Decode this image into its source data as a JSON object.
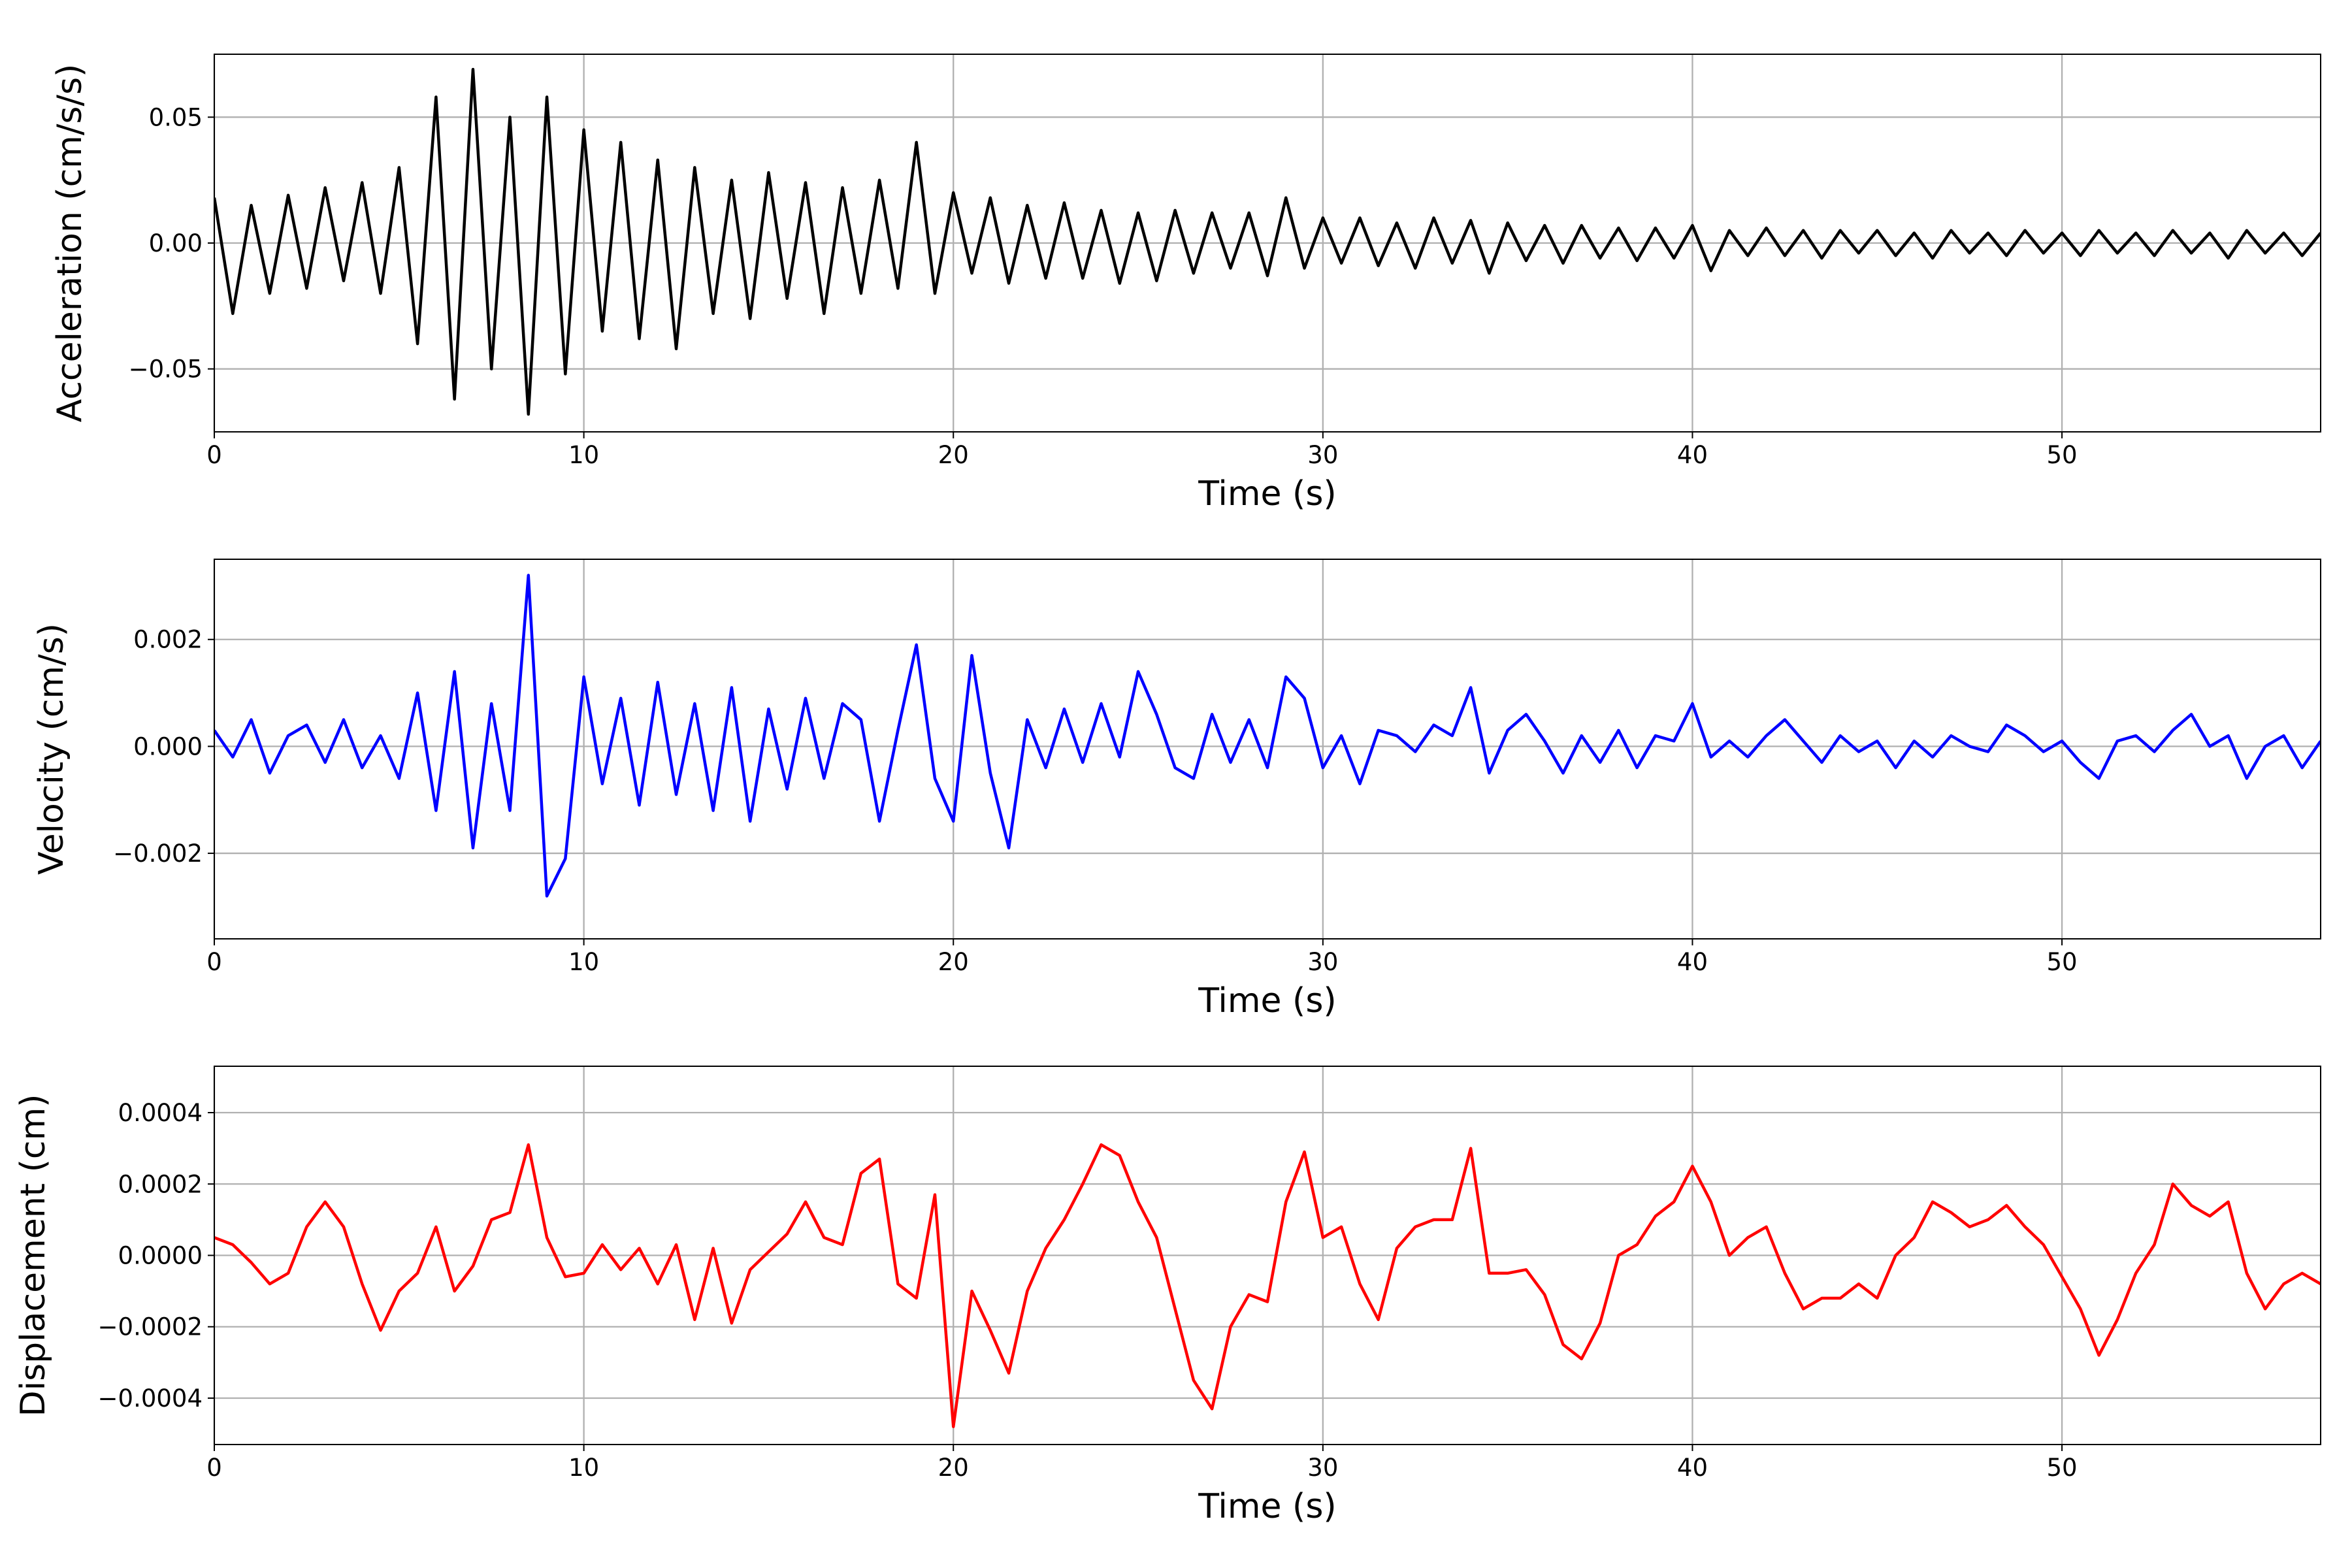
{
  "chart_data": [
    {
      "type": "line",
      "xlabel": "Time (s)",
      "ylabel": "Acceleration (cm/s/s)",
      "xlim": [
        0,
        57
      ],
      "xticks": [
        0,
        10,
        20,
        30,
        40,
        50
      ],
      "ylim": [
        -0.075,
        0.075
      ],
      "yticks": [
        {
          "value": -0.05,
          "label": "−0.05"
        },
        {
          "value": 0,
          "label": "0.00"
        },
        {
          "value": 0.05,
          "label": "0.05"
        }
      ],
      "grid": true,
      "x": [
        0,
        0.5,
        1,
        1.5,
        2,
        2.5,
        3,
        3.5,
        4,
        4.5,
        5,
        5.5,
        6,
        6.5,
        7,
        7.5,
        8,
        8.5,
        9,
        9.5,
        10,
        10.5,
        11,
        11.5,
        12,
        12.5,
        13,
        13.5,
        14,
        14.5,
        15,
        15.5,
        16,
        16.5,
        17,
        17.5,
        18,
        18.5,
        19,
        19.5,
        20,
        20.5,
        21,
        21.5,
        22,
        22.5,
        23,
        23.5,
        24,
        24.5,
        25,
        25.5,
        26,
        26.5,
        27,
        27.5,
        28,
        28.5,
        29,
        29.5,
        30,
        30.5,
        31,
        31.5,
        32,
        32.5,
        33,
        33.5,
        34,
        34.5,
        35,
        35.5,
        36,
        36.5,
        37,
        37.5,
        38,
        38.5,
        39,
        39.5,
        40,
        40.5,
        41,
        41.5,
        42,
        42.5,
        43,
        43.5,
        44,
        44.5,
        45,
        45.5,
        46,
        46.5,
        47,
        47.5,
        48,
        48.5,
        49,
        49.5,
        50,
        50.5,
        51,
        51.5,
        52,
        52.5,
        53,
        53.5,
        54,
        54.5,
        55,
        55.5,
        56,
        56.5,
        57
      ],
      "series": [
        {
          "color": "#000000",
          "values": [
            0.018,
            -0.028,
            0.015,
            -0.02,
            0.019,
            -0.018,
            0.022,
            -0.015,
            0.024,
            -0.02,
            0.03,
            -0.04,
            0.058,
            -0.062,
            0.069,
            -0.05,
            0.05,
            -0.068,
            0.058,
            -0.052,
            0.045,
            -0.035,
            0.04,
            -0.038,
            0.033,
            -0.042,
            0.03,
            -0.028,
            0.025,
            -0.03,
            0.028,
            -0.022,
            0.024,
            -0.028,
            0.022,
            -0.02,
            0.025,
            -0.018,
            0.04,
            -0.02,
            0.02,
            -0.012,
            0.018,
            -0.016,
            0.015,
            -0.014,
            0.016,
            -0.014,
            0.013,
            -0.016,
            0.012,
            -0.015,
            0.013,
            -0.012,
            0.012,
            -0.01,
            0.012,
            -0.013,
            0.018,
            -0.01,
            0.01,
            -0.008,
            0.01,
            -0.009,
            0.008,
            -0.01,
            0.01,
            -0.008,
            0.009,
            -0.012,
            0.008,
            -0.007,
            0.007,
            -0.008,
            0.007,
            -0.006,
            0.006,
            -0.007,
            0.006,
            -0.006,
            0.007,
            -0.011,
            0.005,
            -0.005,
            0.006,
            -0.005,
            0.005,
            -0.006,
            0.005,
            -0.004,
            0.005,
            -0.005,
            0.004,
            -0.006,
            0.005,
            -0.004,
            0.004,
            -0.005,
            0.005,
            -0.004,
            0.004,
            -0.005,
            0.005,
            -0.004,
            0.004,
            -0.005,
            0.005,
            -0.004,
            0.004,
            -0.006,
            0.005,
            -0.004,
            0.004,
            -0.005,
            0.004
          ]
        }
      ]
    },
    {
      "type": "line",
      "xlabel": "Time (s)",
      "ylabel": "Velocity (cm/s)",
      "xlim": [
        0,
        57
      ],
      "xticks": [
        0,
        10,
        20,
        30,
        40,
        50
      ],
      "ylim": [
        -0.0036,
        0.0035
      ],
      "yticks": [
        {
          "value": -0.002,
          "label": "−0.002"
        },
        {
          "value": 0,
          "label": "0.000"
        },
        {
          "value": 0.002,
          "label": "0.002"
        }
      ],
      "grid": true,
      "x": [
        0,
        0.5,
        1,
        1.5,
        2,
        2.5,
        3,
        3.5,
        4,
        4.5,
        5,
        5.5,
        6,
        6.5,
        7,
        7.5,
        8,
        8.5,
        9,
        9.5,
        10,
        10.5,
        11,
        11.5,
        12,
        12.5,
        13,
        13.5,
        14,
        14.5,
        15,
        15.5,
        16,
        16.5,
        17,
        17.5,
        18,
        18.5,
        19,
        19.5,
        20,
        20.5,
        21,
        21.5,
        22,
        22.5,
        23,
        23.5,
        24,
        24.5,
        25,
        25.5,
        26,
        26.5,
        27,
        27.5,
        28,
        28.5,
        29,
        29.5,
        30,
        30.5,
        31,
        31.5,
        32,
        32.5,
        33,
        33.5,
        34,
        34.5,
        35,
        35.5,
        36,
        36.5,
        37,
        37.5,
        38,
        38.5,
        39,
        39.5,
        40,
        40.5,
        41,
        41.5,
        42,
        42.5,
        43,
        43.5,
        44,
        44.5,
        45,
        45.5,
        46,
        46.5,
        47,
        47.5,
        48,
        48.5,
        49,
        49.5,
        50,
        50.5,
        51,
        51.5,
        52,
        52.5,
        53,
        53.5,
        54,
        54.5,
        55,
        55.5,
        56,
        56.5,
        57
      ],
      "series": [
        {
          "color": "#0000ff",
          "values": [
            0.0003,
            -0.0002,
            0.0005,
            -0.0005,
            0.0002,
            0.0004,
            -0.0003,
            0.0005,
            -0.0004,
            0.0002,
            -0.0006,
            0.001,
            -0.0012,
            0.0014,
            -0.0019,
            0.0008,
            -0.0012,
            0.0032,
            -0.0028,
            -0.0021,
            0.0013,
            -0.0007,
            0.0009,
            -0.0011,
            0.0012,
            -0.0009,
            0.0008,
            -0.0012,
            0.0011,
            -0.0014,
            0.0007,
            -0.0008,
            0.0009,
            -0.0006,
            0.0008,
            0.0005,
            -0.0014,
            0.0003,
            0.0019,
            -0.0006,
            -0.0014,
            0.0017,
            -0.0005,
            -0.0019,
            0.0005,
            -0.0004,
            0.0007,
            -0.0003,
            0.0008,
            -0.0002,
            0.0014,
            0.0006,
            -0.0004,
            -0.0006,
            0.0006,
            -0.0003,
            0.0005,
            -0.0004,
            0.0013,
            0.0009,
            -0.0004,
            0.0002,
            -0.0007,
            0.0003,
            0.0002,
            -0.0001,
            0.0004,
            0.0002,
            0.0011,
            -0.0005,
            0.0003,
            0.0006,
            0.0001,
            -0.0005,
            0.0002,
            -0.0003,
            0.0003,
            -0.0004,
            0.0002,
            0.0001,
            0.0008,
            -0.0002,
            0.0001,
            -0.0002,
            0.0002,
            0.0005,
            0.0001,
            -0.0003,
            0.0002,
            -0.0001,
            0.0001,
            -0.0004,
            0.0001,
            -0.0002,
            0.0002,
            0,
            -0.0001,
            0.0004,
            0.0002,
            -0.0001,
            0.0001,
            -0.0003,
            -0.0006,
            0.0001,
            0.0002,
            -0.0001,
            0.0003,
            0.0006,
            0,
            0.0002,
            -0.0006,
            0,
            0.0002,
            -0.0004,
            0.0001
          ]
        }
      ]
    },
    {
      "type": "line",
      "xlabel": "Time (s)",
      "ylabel": "Displacement (cm)",
      "xlim": [
        0,
        57
      ],
      "xticks": [
        0,
        10,
        20,
        30,
        40,
        50
      ],
      "ylim": [
        -0.00053,
        0.00053
      ],
      "yticks": [
        {
          "value": -0.0004,
          "label": "−0.0004"
        },
        {
          "value": -0.0002,
          "label": "−0.0002"
        },
        {
          "value": 0,
          "label": "0.0000"
        },
        {
          "value": 0.0002,
          "label": "0.0002"
        },
        {
          "value": 0.0004,
          "label": "0.0004"
        }
      ],
      "grid": true,
      "x": [
        0,
        0.5,
        1,
        1.5,
        2,
        2.5,
        3,
        3.5,
        4,
        4.5,
        5,
        5.5,
        6,
        6.5,
        7,
        7.5,
        8,
        8.5,
        9,
        9.5,
        10,
        10.5,
        11,
        11.5,
        12,
        12.5,
        13,
        13.5,
        14,
        14.5,
        15,
        15.5,
        16,
        16.5,
        17,
        17.5,
        18,
        18.5,
        19,
        19.5,
        20,
        20.5,
        21,
        21.5,
        22,
        22.5,
        23,
        23.5,
        24,
        24.5,
        25,
        25.5,
        26,
        26.5,
        27,
        27.5,
        28,
        28.5,
        29,
        29.5,
        30,
        30.5,
        31,
        31.5,
        32,
        32.5,
        33,
        33.5,
        34,
        34.5,
        35,
        35.5,
        36,
        36.5,
        37,
        37.5,
        38,
        38.5,
        39,
        39.5,
        40,
        40.5,
        41,
        41.5,
        42,
        42.5,
        43,
        43.5,
        44,
        44.5,
        45,
        45.5,
        46,
        46.5,
        47,
        47.5,
        48,
        48.5,
        49,
        49.5,
        50,
        50.5,
        51,
        51.5,
        52,
        52.5,
        53,
        53.5,
        54,
        54.5,
        55,
        55.5,
        56,
        56.5,
        57
      ],
      "series": [
        {
          "color": "#ff0000",
          "values": [
            5e-05,
            3e-05,
            -2e-05,
            -8e-05,
            -5e-05,
            8e-05,
            0.00015,
            8e-05,
            -8e-05,
            -0.00021,
            -0.0001,
            -5e-05,
            8e-05,
            -0.0001,
            -3e-05,
            0.0001,
            0.00012,
            0.00031,
            5e-05,
            -6e-05,
            -5e-05,
            3e-05,
            -4e-05,
            2e-05,
            -8e-05,
            3e-05,
            -0.00018,
            2e-05,
            -0.00019,
            -4e-05,
            1e-05,
            6e-05,
            0.00015,
            5e-05,
            3e-05,
            0.00023,
            0.00027,
            -8e-05,
            -0.00012,
            0.00017,
            -0.00048,
            -0.0001,
            -0.00021,
            -0.00033,
            -0.0001,
            2e-05,
            0.0001,
            0.0002,
            0.00031,
            0.00028,
            0.00015,
            5e-05,
            -0.00015,
            -0.00035,
            -0.00043,
            -0.0002,
            -0.00011,
            -0.00013,
            0.00015,
            0.00029,
            5e-05,
            8e-05,
            -8e-05,
            -0.00018,
            2e-05,
            8e-05,
            0.0001,
            0.0001,
            0.0003,
            -5e-05,
            -5e-05,
            -4e-05,
            -0.00011,
            -0.00025,
            -0.00029,
            -0.00019,
            0,
            3e-05,
            0.00011,
            0.00015,
            0.00025,
            0.00015,
            0,
            5e-05,
            8e-05,
            -5e-05,
            -0.00015,
            -0.00012,
            -0.00012,
            -8e-05,
            -0.00012,
            0,
            5e-05,
            0.00015,
            0.00012,
            8e-05,
            0.0001,
            0.00014,
            8e-05,
            3e-05,
            -6e-05,
            -0.00015,
            -0.00028,
            -0.00018,
            -5e-05,
            3e-05,
            0.0002,
            0.00014,
            0.00011,
            0.00015,
            -5e-05,
            -0.00015,
            -8e-05,
            -5e-05,
            -8e-05
          ]
        }
      ]
    }
  ]
}
